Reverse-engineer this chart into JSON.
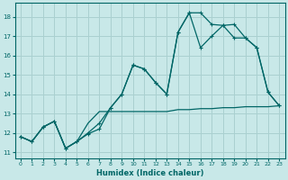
{
  "xlabel": "Humidex (Indice chaleur)",
  "bg_color": "#c8e8e8",
  "grid_color": "#aad0d0",
  "line_color": "#006666",
  "xlim": [
    -0.5,
    23.5
  ],
  "ylim": [
    10.7,
    18.7
  ],
  "yticks": [
    11,
    12,
    13,
    14,
    15,
    16,
    17,
    18
  ],
  "xticks": [
    0,
    1,
    2,
    3,
    4,
    5,
    6,
    7,
    8,
    9,
    10,
    11,
    12,
    13,
    14,
    15,
    16,
    17,
    18,
    19,
    20,
    21,
    22,
    23
  ],
  "line1_x": [
    0,
    1,
    2,
    3,
    4,
    5,
    6,
    7,
    8,
    9,
    10,
    11,
    12,
    13,
    14,
    15,
    16,
    17,
    18,
    19,
    20,
    21,
    22,
    23
  ],
  "line1_y": [
    11.8,
    11.55,
    12.3,
    12.6,
    11.2,
    11.55,
    11.95,
    12.2,
    13.3,
    14.0,
    15.5,
    15.3,
    14.6,
    14.0,
    17.2,
    18.2,
    18.2,
    17.6,
    17.55,
    17.6,
    16.9,
    16.4,
    14.1,
    13.4
  ],
  "line2_x": [
    0,
    1,
    2,
    3,
    4,
    5,
    6,
    7,
    8,
    9,
    10,
    11,
    12,
    13,
    14,
    15,
    16,
    17,
    18,
    19,
    20,
    21,
    22,
    23
  ],
  "line2_y": [
    11.8,
    11.55,
    12.3,
    12.6,
    11.2,
    11.55,
    12.5,
    13.1,
    13.1,
    13.1,
    13.1,
    13.1,
    13.1,
    13.1,
    13.2,
    13.2,
    13.25,
    13.25,
    13.3,
    13.3,
    13.35,
    13.35,
    13.35,
    13.4
  ],
  "line3_x": [
    0,
    1,
    2,
    3,
    4,
    5,
    6,
    7,
    8,
    9,
    10,
    11,
    12,
    13,
    14,
    15,
    16,
    17,
    18,
    19,
    20,
    21,
    22,
    23
  ],
  "line3_y": [
    11.8,
    11.55,
    12.3,
    12.6,
    11.2,
    11.55,
    12.0,
    12.5,
    13.3,
    14.0,
    15.5,
    15.3,
    14.6,
    14.0,
    17.2,
    18.2,
    16.4,
    17.0,
    17.55,
    16.9,
    16.9,
    16.4,
    14.1,
    13.4
  ]
}
